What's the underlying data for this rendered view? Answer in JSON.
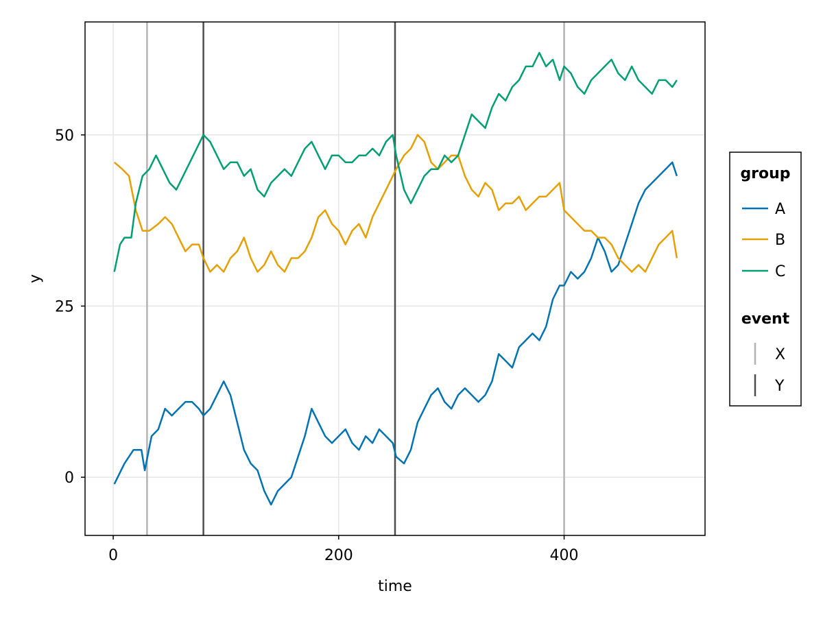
{
  "chart_data": {
    "type": "line",
    "title": "",
    "xlabel": "time",
    "ylabel": "y",
    "xlim": [
      -25,
      525
    ],
    "ylim": [
      -8.5,
      66.5
    ],
    "xticks": [
      0,
      200,
      400
    ],
    "yticks": [
      0,
      25,
      50
    ],
    "grid": true,
    "legend_position": "right",
    "legend_groups": [
      {
        "title": "group",
        "entries": [
          {
            "label": "A",
            "color": "#0072B2"
          },
          {
            "label": "B",
            "color": "#E69F00"
          },
          {
            "label": "C",
            "color": "#009E73"
          }
        ]
      },
      {
        "title": "event",
        "entries": [
          {
            "label": "X",
            "color": "#B3B3B3"
          },
          {
            "label": "Y",
            "color": "#4D4D4D"
          }
        ]
      }
    ],
    "series": [
      {
        "name": "A",
        "color": "#0072B2",
        "x": [
          1,
          10,
          18,
          25,
          28,
          34,
          40,
          46,
          52,
          58,
          64,
          70,
          76,
          80,
          86,
          92,
          98,
          104,
          110,
          116,
          122,
          128,
          134,
          140,
          146,
          152,
          158,
          164,
          170,
          176,
          182,
          188,
          194,
          200,
          206,
          212,
          218,
          224,
          230,
          236,
          242,
          248,
          251,
          258,
          264,
          270,
          276,
          282,
          288,
          294,
          300,
          306,
          312,
          318,
          324,
          330,
          336,
          342,
          348,
          354,
          360,
          366,
          372,
          378,
          384,
          390,
          396,
          400,
          406,
          412,
          418,
          424,
          430,
          436,
          442,
          448,
          454,
          460,
          466,
          472,
          478,
          484,
          490,
          496,
          500
        ],
        "y": [
          -1,
          2,
          4,
          4,
          1,
          6,
          7,
          10,
          9,
          10,
          11,
          11,
          10,
          9,
          10,
          12,
          14,
          12,
          8,
          4,
          2,
          1,
          -2,
          -4,
          -2,
          -1,
          0,
          3,
          6,
          10,
          8,
          6,
          5,
          6,
          7,
          5,
          4,
          6,
          5,
          7,
          6,
          5,
          3,
          2,
          4,
          8,
          10,
          12,
          13,
          11,
          10,
          12,
          13,
          12,
          11,
          12,
          14,
          18,
          17,
          16,
          19,
          20,
          21,
          20,
          22,
          26,
          28,
          28,
          30,
          29,
          30,
          32,
          35,
          33,
          30,
          31,
          34,
          37,
          40,
          42,
          43,
          44,
          45,
          46,
          44
        ]
      },
      {
        "name": "B",
        "color": "#E69F00",
        "x": [
          1,
          8,
          14,
          20,
          26,
          32,
          40,
          46,
          52,
          58,
          64,
          70,
          76,
          80,
          86,
          92,
          98,
          104,
          110,
          116,
          122,
          128,
          134,
          140,
          146,
          152,
          158,
          164,
          170,
          176,
          182,
          188,
          194,
          200,
          206,
          212,
          218,
          224,
          230,
          236,
          242,
          248,
          251,
          258,
          264,
          270,
          276,
          282,
          288,
          294,
          300,
          306,
          312,
          318,
          324,
          330,
          336,
          342,
          348,
          354,
          360,
          366,
          372,
          378,
          384,
          390,
          396,
          400,
          406,
          412,
          418,
          424,
          430,
          436,
          442,
          448,
          454,
          460,
          466,
          472,
          478,
          484,
          490,
          496,
          500
        ],
        "y": [
          46,
          45,
          44,
          39,
          36,
          36,
          37,
          38,
          37,
          35,
          33,
          34,
          34,
          32,
          30,
          31,
          30,
          32,
          33,
          35,
          32,
          30,
          31,
          33,
          31,
          30,
          32,
          32,
          33,
          35,
          38,
          39,
          37,
          36,
          34,
          36,
          37,
          35,
          38,
          40,
          42,
          44,
          45,
          47,
          48,
          50,
          49,
          46,
          45,
          46,
          47,
          47,
          44,
          42,
          41,
          43,
          42,
          39,
          40,
          40,
          41,
          39,
          40,
          41,
          41,
          42,
          43,
          39,
          38,
          37,
          36,
          36,
          35,
          35,
          34,
          32,
          31,
          30,
          31,
          30,
          32,
          34,
          35,
          36,
          32
        ]
      },
      {
        "name": "C",
        "color": "#009E73",
        "x": [
          1,
          6,
          10,
          16,
          20,
          26,
          32,
          38,
          44,
          50,
          56,
          62,
          68,
          74,
          80,
          86,
          92,
          98,
          104,
          110,
          116,
          122,
          128,
          134,
          140,
          146,
          152,
          158,
          164,
          170,
          176,
          182,
          188,
          194,
          200,
          206,
          212,
          218,
          224,
          230,
          236,
          242,
          248,
          251,
          258,
          264,
          270,
          276,
          282,
          288,
          294,
          300,
          306,
          312,
          318,
          324,
          330,
          336,
          342,
          348,
          354,
          360,
          366,
          372,
          378,
          384,
          390,
          396,
          400,
          406,
          412,
          418,
          424,
          430,
          436,
          442,
          448,
          454,
          460,
          466,
          472,
          478,
          484,
          490,
          496,
          500
        ],
        "y": [
          30,
          34,
          35,
          35,
          40,
          44,
          45,
          47,
          45,
          43,
          42,
          44,
          46,
          48,
          50,
          49,
          47,
          45,
          46,
          46,
          44,
          45,
          42,
          41,
          43,
          44,
          45,
          44,
          46,
          48,
          49,
          47,
          45,
          47,
          47,
          46,
          46,
          47,
          47,
          48,
          47,
          49,
          50,
          47,
          42,
          40,
          42,
          44,
          45,
          45,
          47,
          46,
          47,
          50,
          53,
          52,
          51,
          54,
          56,
          55,
          57,
          58,
          60,
          60,
          62,
          60,
          61,
          58,
          60,
          59,
          57,
          56,
          58,
          59,
          60,
          61,
          59,
          58,
          60,
          58,
          57,
          56,
          58,
          58,
          57,
          58
        ]
      }
    ],
    "events": [
      {
        "x": 30,
        "type": "X",
        "color": "#B3B3B3"
      },
      {
        "x": 80,
        "type": "Y",
        "color": "#4D4D4D"
      },
      {
        "x": 250,
        "type": "Y",
        "color": "#4D4D4D"
      },
      {
        "x": 400,
        "type": "X",
        "color": "#B3B3B3"
      }
    ]
  }
}
